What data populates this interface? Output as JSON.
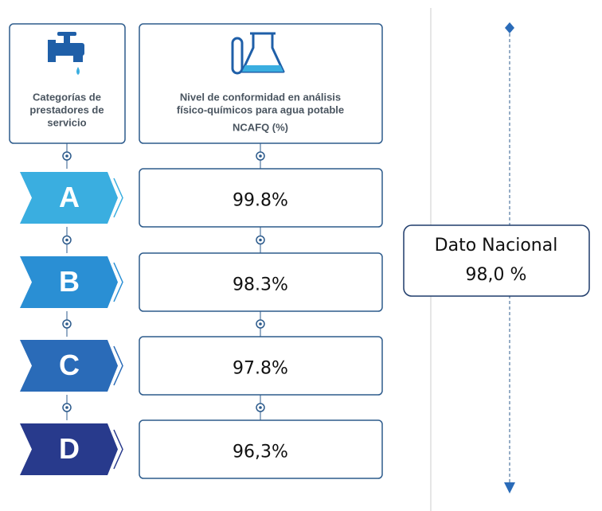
{
  "header_left": {
    "lines": [
      "Categorías de",
      "prestadores de",
      "servicio"
    ]
  },
  "header_right": {
    "lines": [
      "Nivel de conformidad en análisis",
      "físico-químicos para agua potable",
      "NCAFQ (%)"
    ]
  },
  "rows": [
    {
      "category": "A",
      "value": "99.8%"
    },
    {
      "category": "B",
      "value": "98.3%"
    },
    {
      "category": "C",
      "value": "97.8%"
    },
    {
      "category": "D",
      "value": "96,3%"
    }
  ],
  "national": {
    "label": "Dato Nacional",
    "value": "98,0 %"
  }
}
